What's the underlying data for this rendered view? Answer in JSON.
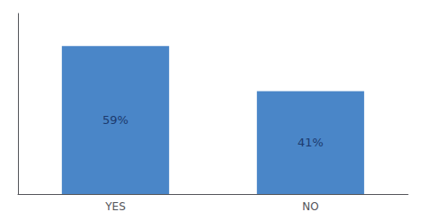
{
  "chart_data": {
    "type": "bar",
    "categories": [
      "YES",
      "NO"
    ],
    "values": [
      59,
      41
    ],
    "value_labels": [
      "59%",
      "41%"
    ],
    "data_labels": true,
    "color": "#4a86c8",
    "ylim": [
      0,
      72
    ],
    "yticks": [],
    "tick_labels": "x",
    "grid": false
  }
}
